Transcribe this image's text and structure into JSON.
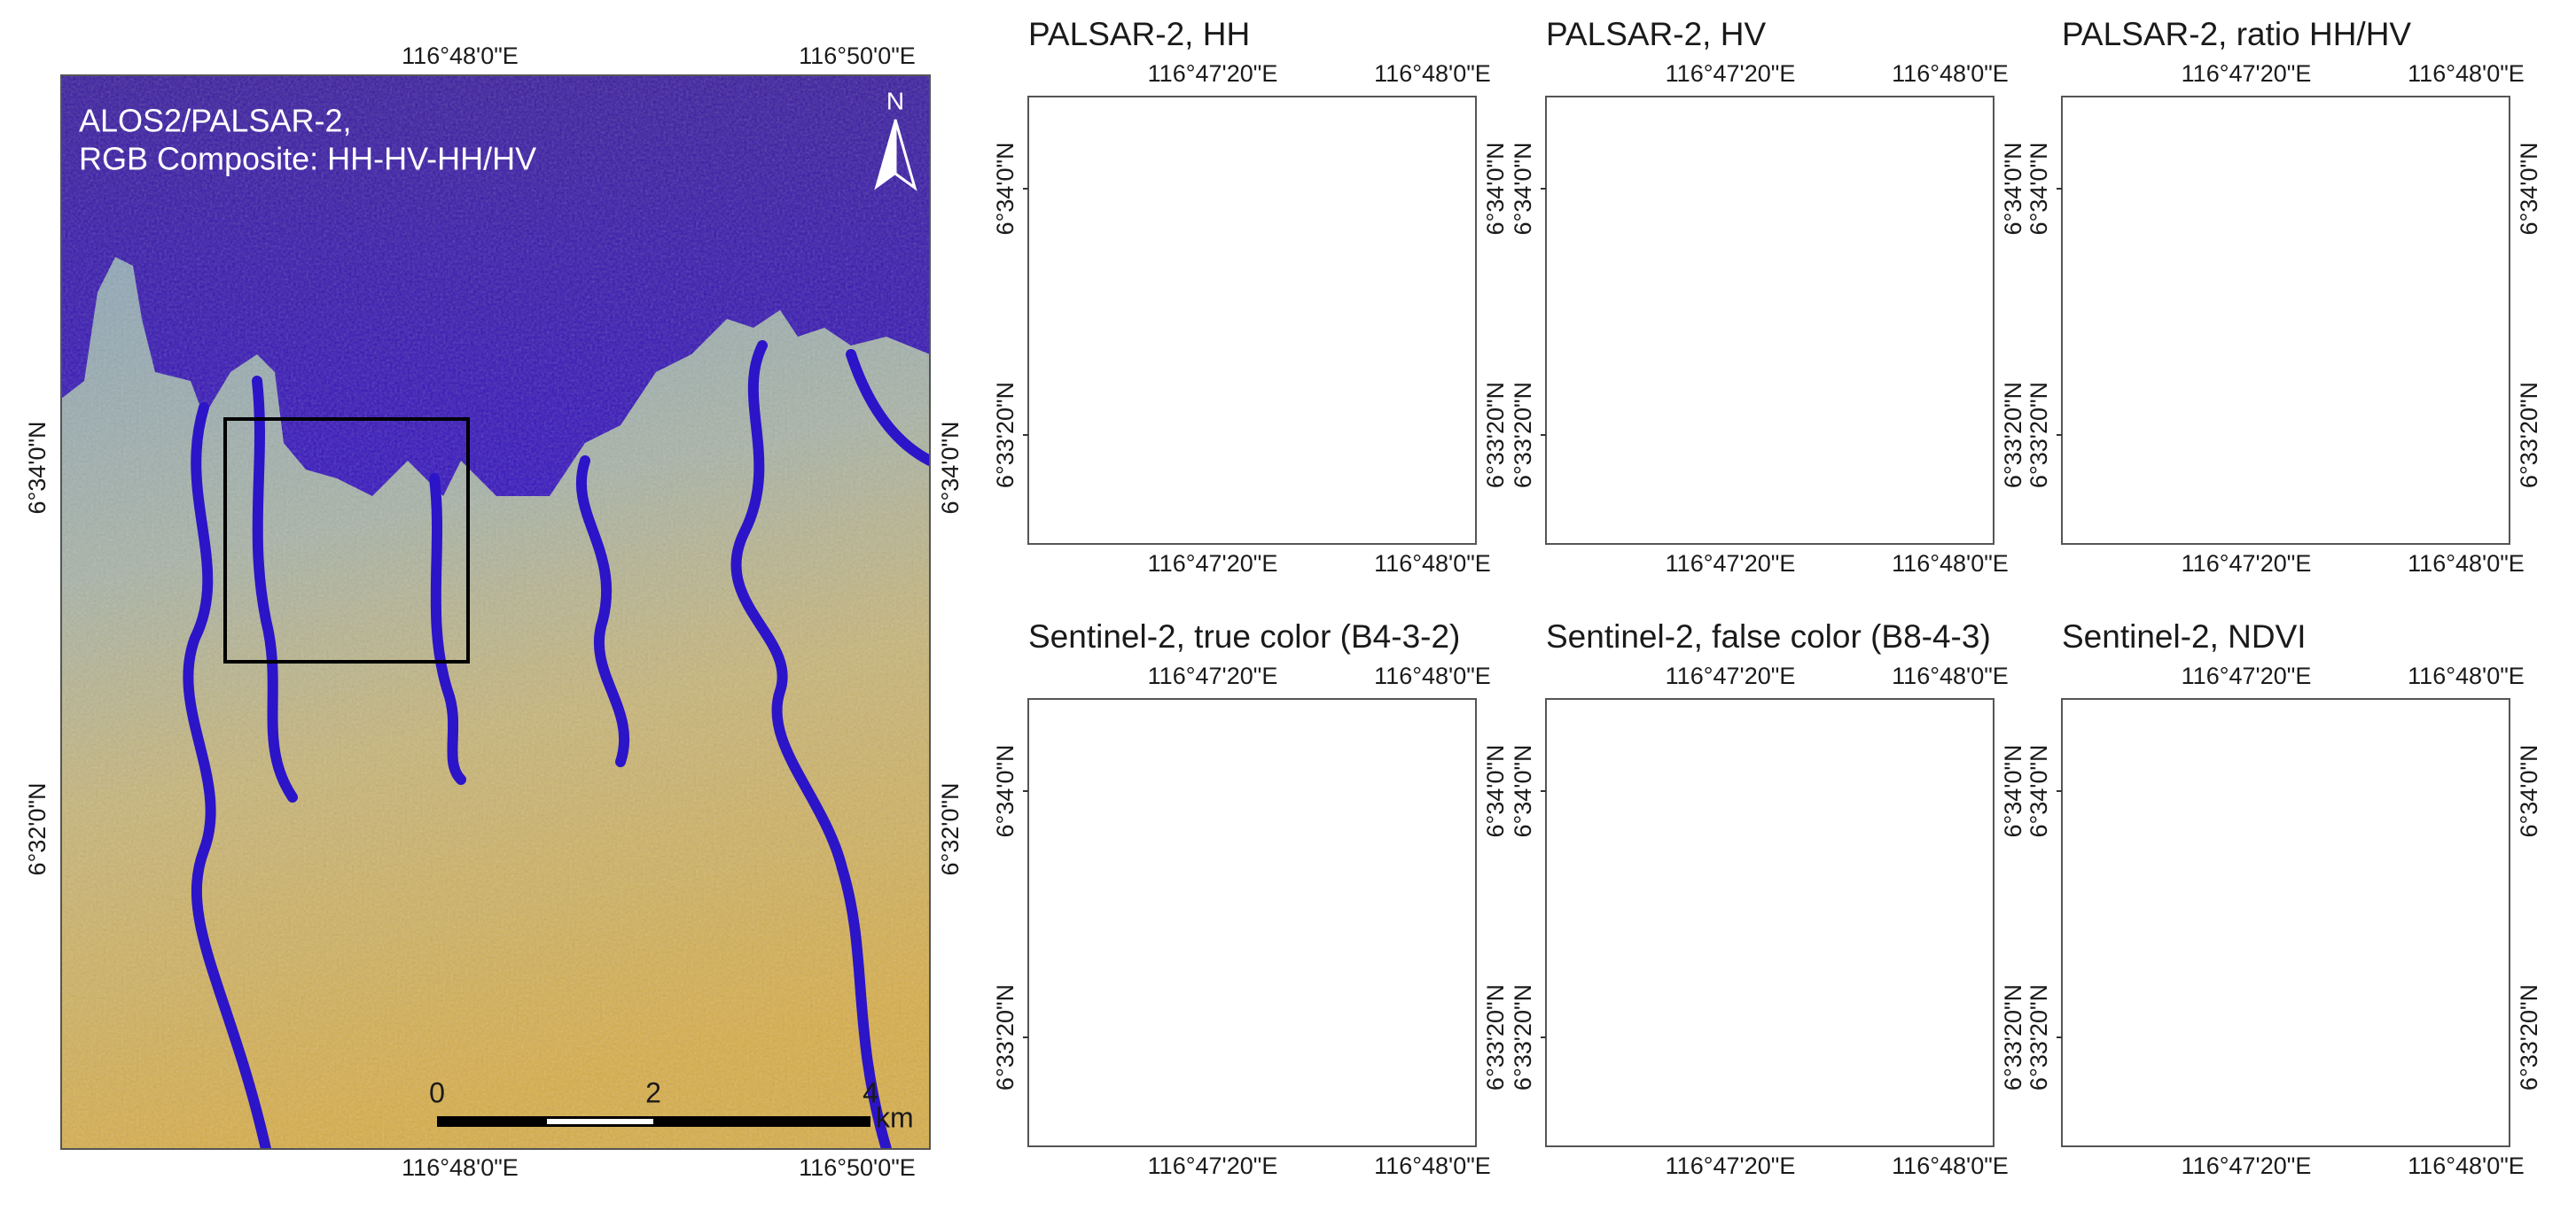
{
  "main_map": {
    "title_lines": [
      "ALOS2/PALSAR-2,",
      "RGB Composite: HH-HV-HH/HV"
    ],
    "north_label": "N",
    "top_lon_labels": [
      "116°48'0\"E",
      "116°50'0\"E"
    ],
    "bottom_lon_labels": [
      "116°48'0\"E",
      "116°50'0\"E"
    ],
    "left_lat_labels": [
      "6°34'0\"N",
      "6°32'0\"N"
    ],
    "right_lat_labels": [
      "6°34'0\"N",
      "6°32'0\"N"
    ],
    "scale_bar": {
      "labels": [
        "0",
        "2",
        "4"
      ],
      "unit": "km"
    }
  },
  "panels": [
    {
      "title": "PALSAR-2, HH",
      "top_lon_labels": [
        "116°47'20\"E",
        "116°48'0\"E"
      ],
      "bottom_lon_labels": [
        "116°47'20\"E",
        "116°48'0\"E"
      ],
      "left_lat_labels": [
        "6°34'0\"N",
        "6°33'20\"N"
      ],
      "right_lat_labels": [
        "6°34'0\"N",
        "6°33'20\"N"
      ]
    },
    {
      "title": "PALSAR-2, HV",
      "top_lon_labels": [
        "116°47'20\"E",
        "116°48'0\"E"
      ],
      "bottom_lon_labels": [
        "116°47'20\"E",
        "116°48'0\"E"
      ],
      "left_lat_labels": [
        "6°34'0\"N",
        "6°33'20\"N"
      ],
      "right_lat_labels": [
        "6°34'0\"N",
        "6°33'20\"N"
      ]
    },
    {
      "title": "PALSAR-2, ratio HH/HV",
      "top_lon_labels": [
        "116°47'20\"E",
        "116°48'0\"E"
      ],
      "bottom_lon_labels": [
        "116°47'20\"E",
        "116°48'0\"E"
      ],
      "left_lat_labels": [
        "6°34'0\"N",
        "6°33'20\"N"
      ],
      "right_lat_labels": [
        "6°34'0\"N",
        "6°33'20\"N"
      ]
    },
    {
      "title": "Sentinel-2, true color (B4-3-2)",
      "top_lon_labels": [
        "116°47'20\"E",
        "116°48'0\"E"
      ],
      "bottom_lon_labels": [
        "116°47'20\"E",
        "116°48'0\"E"
      ],
      "left_lat_labels": [
        "6°34'0\"N",
        "6°33'20\"N"
      ],
      "right_lat_labels": [
        "6°34'0\"N",
        "6°33'20\"N"
      ]
    },
    {
      "title": "Sentinel-2, false color (B8-4-3)",
      "top_lon_labels": [
        "116°47'20\"E",
        "116°48'0\"E"
      ],
      "bottom_lon_labels": [
        "116°47'20\"E",
        "116°48'0\"E"
      ],
      "left_lat_labels": [
        "6°34'0\"N",
        "6°33'20\"N"
      ],
      "right_lat_labels": [
        "6°34'0\"N",
        "6°33'20\"N"
      ]
    },
    {
      "title": "Sentinel-2, NDVI",
      "top_lon_labels": [
        "116°47'20\"E",
        "116°48'0\"E"
      ],
      "bottom_lon_labels": [
        "116°47'20\"E",
        "116°48'0\"E"
      ],
      "left_lat_labels": [
        "6°34'0\"N",
        "6°33'20\"N"
      ],
      "right_lat_labels": [
        "6°34'0\"N",
        "6°33'20\"N"
      ]
    }
  ]
}
